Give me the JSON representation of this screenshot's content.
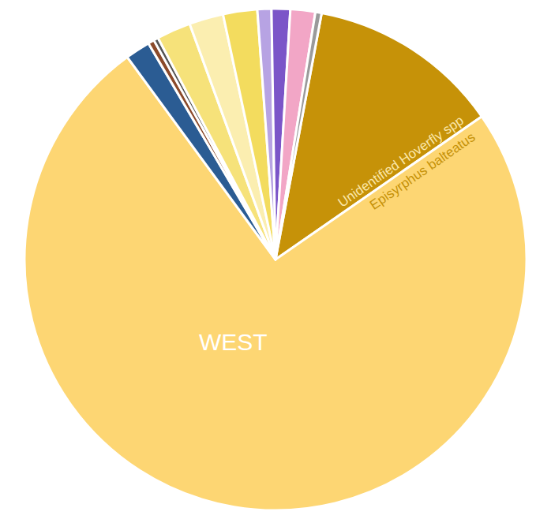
{
  "chart_data": {
    "type": "pie",
    "title": "WEST",
    "categories": [
      "Unidentified Hoverfly spp",
      "Episyrphus balteatus",
      null,
      null,
      null,
      null,
      null,
      null,
      null,
      null,
      null,
      null
    ],
    "values": [
      12.4,
      74.6,
      1.6,
      0.4,
      0.3,
      2.2,
      2.2,
      2.2,
      0.9,
      1.2,
      1.6,
      0.4
    ],
    "colors": [
      "#c69208",
      "#fdd673",
      "#2b5c93",
      "#8b4a2a",
      "#555555",
      "#f6e27a",
      "#fbeeb0",
      "#f3dc5e",
      "#b7a3e3",
      "#7b55c8",
      "#f2a6c6",
      "#9a9a9a"
    ]
  }
}
